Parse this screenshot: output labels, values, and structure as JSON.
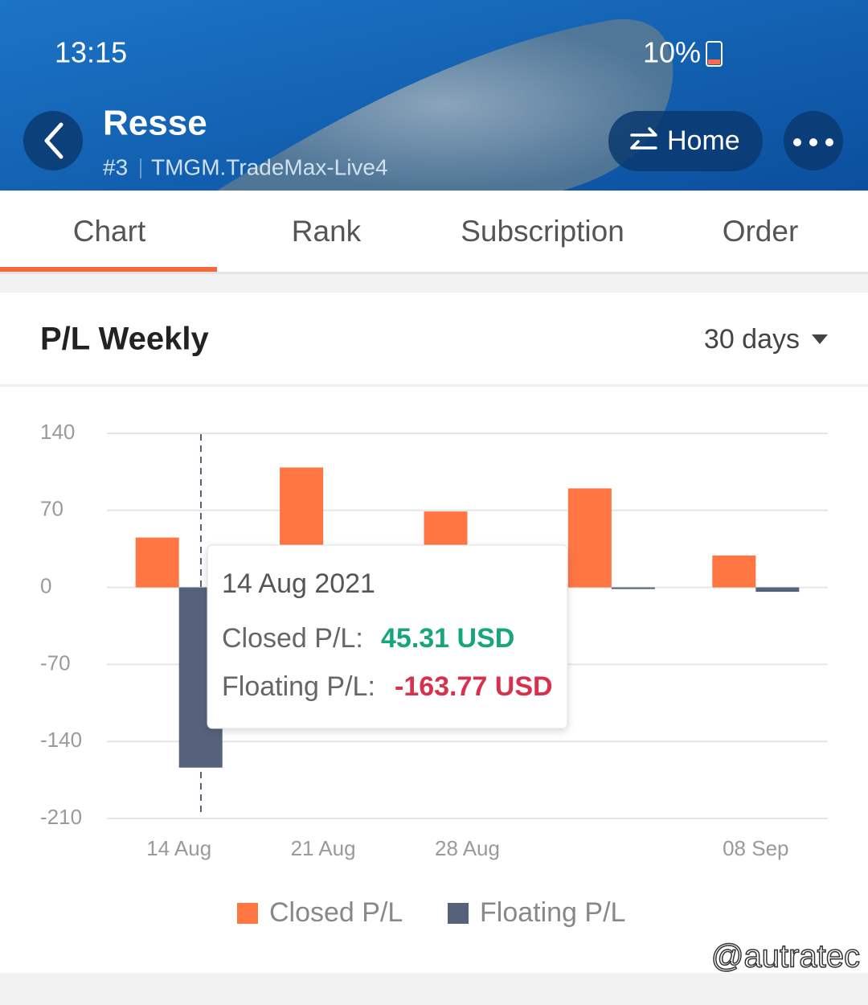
{
  "status_bar": {
    "time": "13:15",
    "battery": "10%"
  },
  "header": {
    "title": "Resse",
    "rank": "#3",
    "server": "TMGM.TradeMax-Live4",
    "home_button": "Home"
  },
  "tabs": [
    "Chart",
    "Rank",
    "Subscription",
    "Order"
  ],
  "active_tab": 0,
  "panel": {
    "title": "P/L Weekly",
    "period": "30 days"
  },
  "chart_data": {
    "type": "bar",
    "categories": [
      "14 Aug",
      "21 Aug",
      "28 Aug",
      null,
      "08 Sep"
    ],
    "series": [
      {
        "name": "Closed P/L",
        "color": "#ff7643",
        "values": [
          45.31,
          109,
          69,
          90,
          29
        ]
      },
      {
        "name": "Floating P/L",
        "color": "#56627b",
        "values": [
          -163.77,
          0,
          0,
          -1.5,
          -4
        ]
      }
    ],
    "ylim": [
      -210,
      140
    ],
    "yticks": [
      -210,
      -140,
      -70,
      0,
      70,
      140
    ],
    "grid": true
  },
  "tooltip": {
    "date": "14 Aug 2021",
    "rows": [
      {
        "label": "Closed P/L:",
        "value": "45.31 USD"
      },
      {
        "label": "Floating P/L:",
        "value": "-163.77 USD"
      }
    ]
  },
  "watermark": "@autratec"
}
